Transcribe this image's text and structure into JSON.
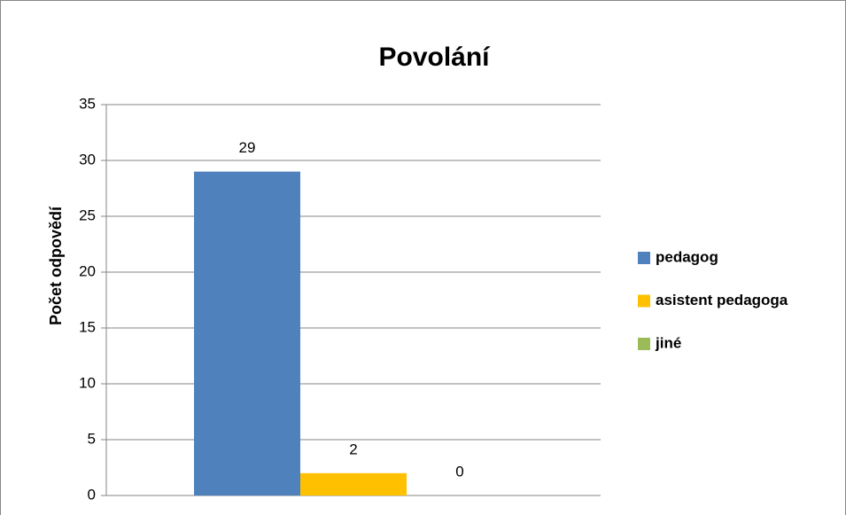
{
  "chart_data": {
    "type": "bar",
    "title": "Povolání",
    "y_label": "Počet odpovědí",
    "categories": [
      null
    ],
    "series": [
      {
        "name": "pedagog",
        "color": "#4f81bd",
        "values": [
          29
        ]
      },
      {
        "name": "asistent pedagoga",
        "color": "#ffc000",
        "values": [
          2
        ]
      },
      {
        "name": "jiné",
        "color": "#9bbb59",
        "values": [
          0
        ]
      }
    ],
    "ylim": [
      0,
      35
    ],
    "yticks": [
      0,
      5,
      10,
      15,
      20,
      25,
      30,
      35
    ],
    "grid": true,
    "legend": "right"
  }
}
